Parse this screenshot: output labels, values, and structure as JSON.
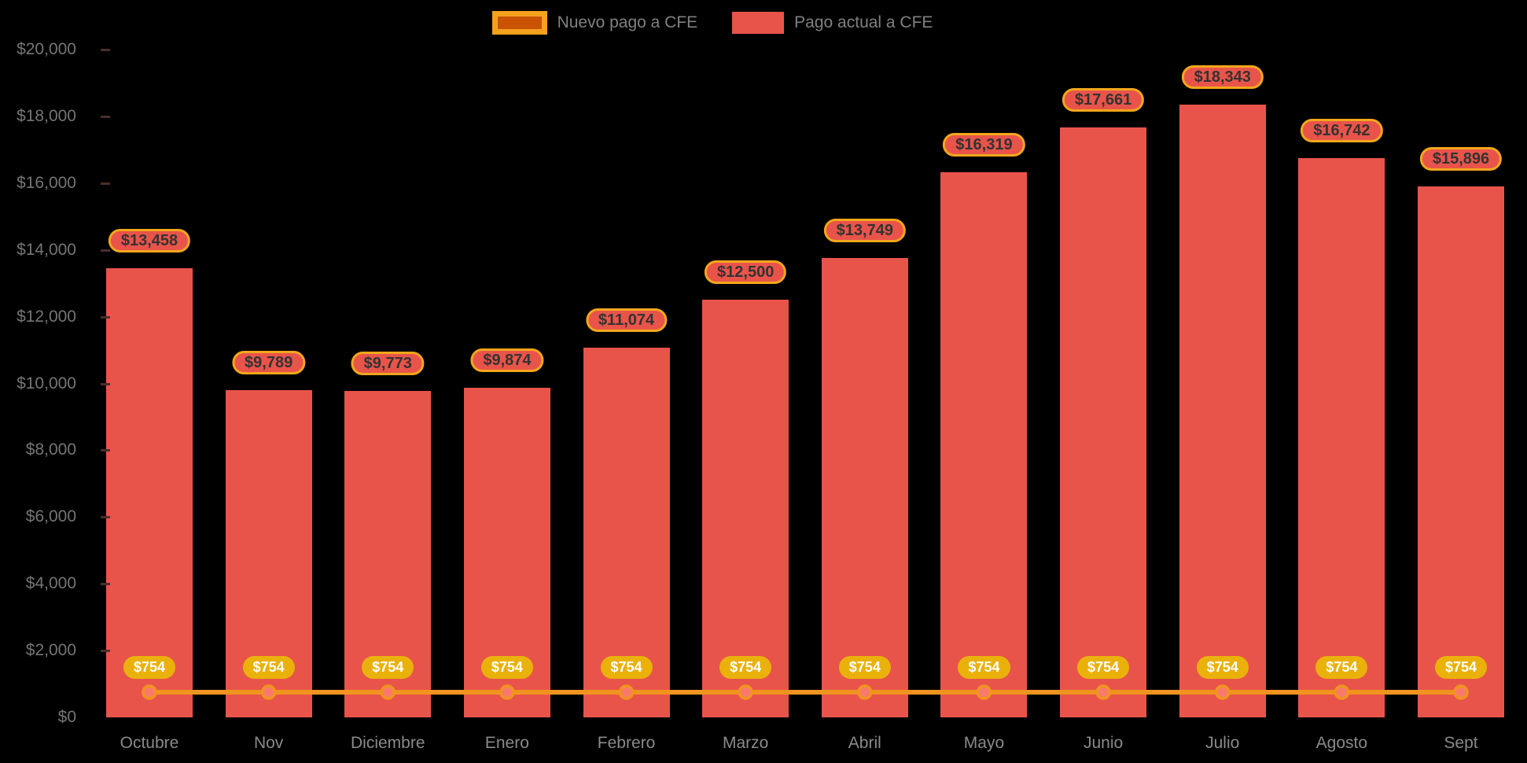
{
  "background_color": "#000000",
  "legend": {
    "items": [
      {
        "label": "Nuevo pago a CFE",
        "swatch_fill": "#C95301",
        "swatch_border": "#F5A11D",
        "series_type": "line"
      },
      {
        "label": "Pago actual a CFE",
        "swatch_fill": "#E9544A",
        "series_type": "bar"
      }
    ]
  },
  "chart_data": {
    "type": "bar",
    "subtype": "bar-with-line-overlay",
    "categories": [
      "Octubre",
      "Nov",
      "Diciembre",
      "Enero",
      "Febrero",
      "Marzo",
      "Abril",
      "Mayo",
      "Junio",
      "Julio",
      "Agosto",
      "Sept"
    ],
    "series": [
      {
        "name": "Pago actual a CFE",
        "type": "bar",
        "color": "#E9544A",
        "values": [
          13458,
          9789,
          9773,
          9874,
          11074,
          12500,
          13749,
          16319,
          17661,
          18343,
          16742,
          15896
        ],
        "labels": [
          "$13,458",
          "$9,789",
          "$9,773",
          "$9,874",
          "$11,074",
          "$12,500",
          "$13,749",
          "$16,319",
          "$17,661",
          "$18,343",
          "$16,742",
          "$15,896"
        ],
        "label_style": {
          "fill": "#E9544A",
          "border": "#F2A71B",
          "text": "#333333"
        }
      },
      {
        "name": "Nuevo pago a CFE",
        "type": "line",
        "color": "#F0941F",
        "marker_fill": "#F97A6D",
        "marker_stroke": "#F0941F",
        "values": [
          754,
          754,
          754,
          754,
          754,
          754,
          754,
          754,
          754,
          754,
          754,
          754
        ],
        "labels": [
          "$754",
          "$754",
          "$754",
          "$754",
          "$754",
          "$754",
          "$754",
          "$754",
          "$754",
          "$754",
          "$754",
          "$754"
        ],
        "label_style": {
          "fill": "#EAB10B",
          "text": "#ffffff"
        }
      }
    ],
    "y_axis": {
      "min": 0,
      "max": 20000,
      "step": 2000,
      "tick_labels": [
        "$0",
        "$2,000",
        "$4,000",
        "$6,000",
        "$8,000",
        "$10,000",
        "$12,000",
        "$14,000",
        "$16,000",
        "$18,000",
        "$20,000"
      ],
      "tick_color": "#757575"
    },
    "x_axis": {
      "tick_color": "#8A8A8A"
    },
    "grid": false,
    "legend_position": "top-center",
    "title": ""
  }
}
